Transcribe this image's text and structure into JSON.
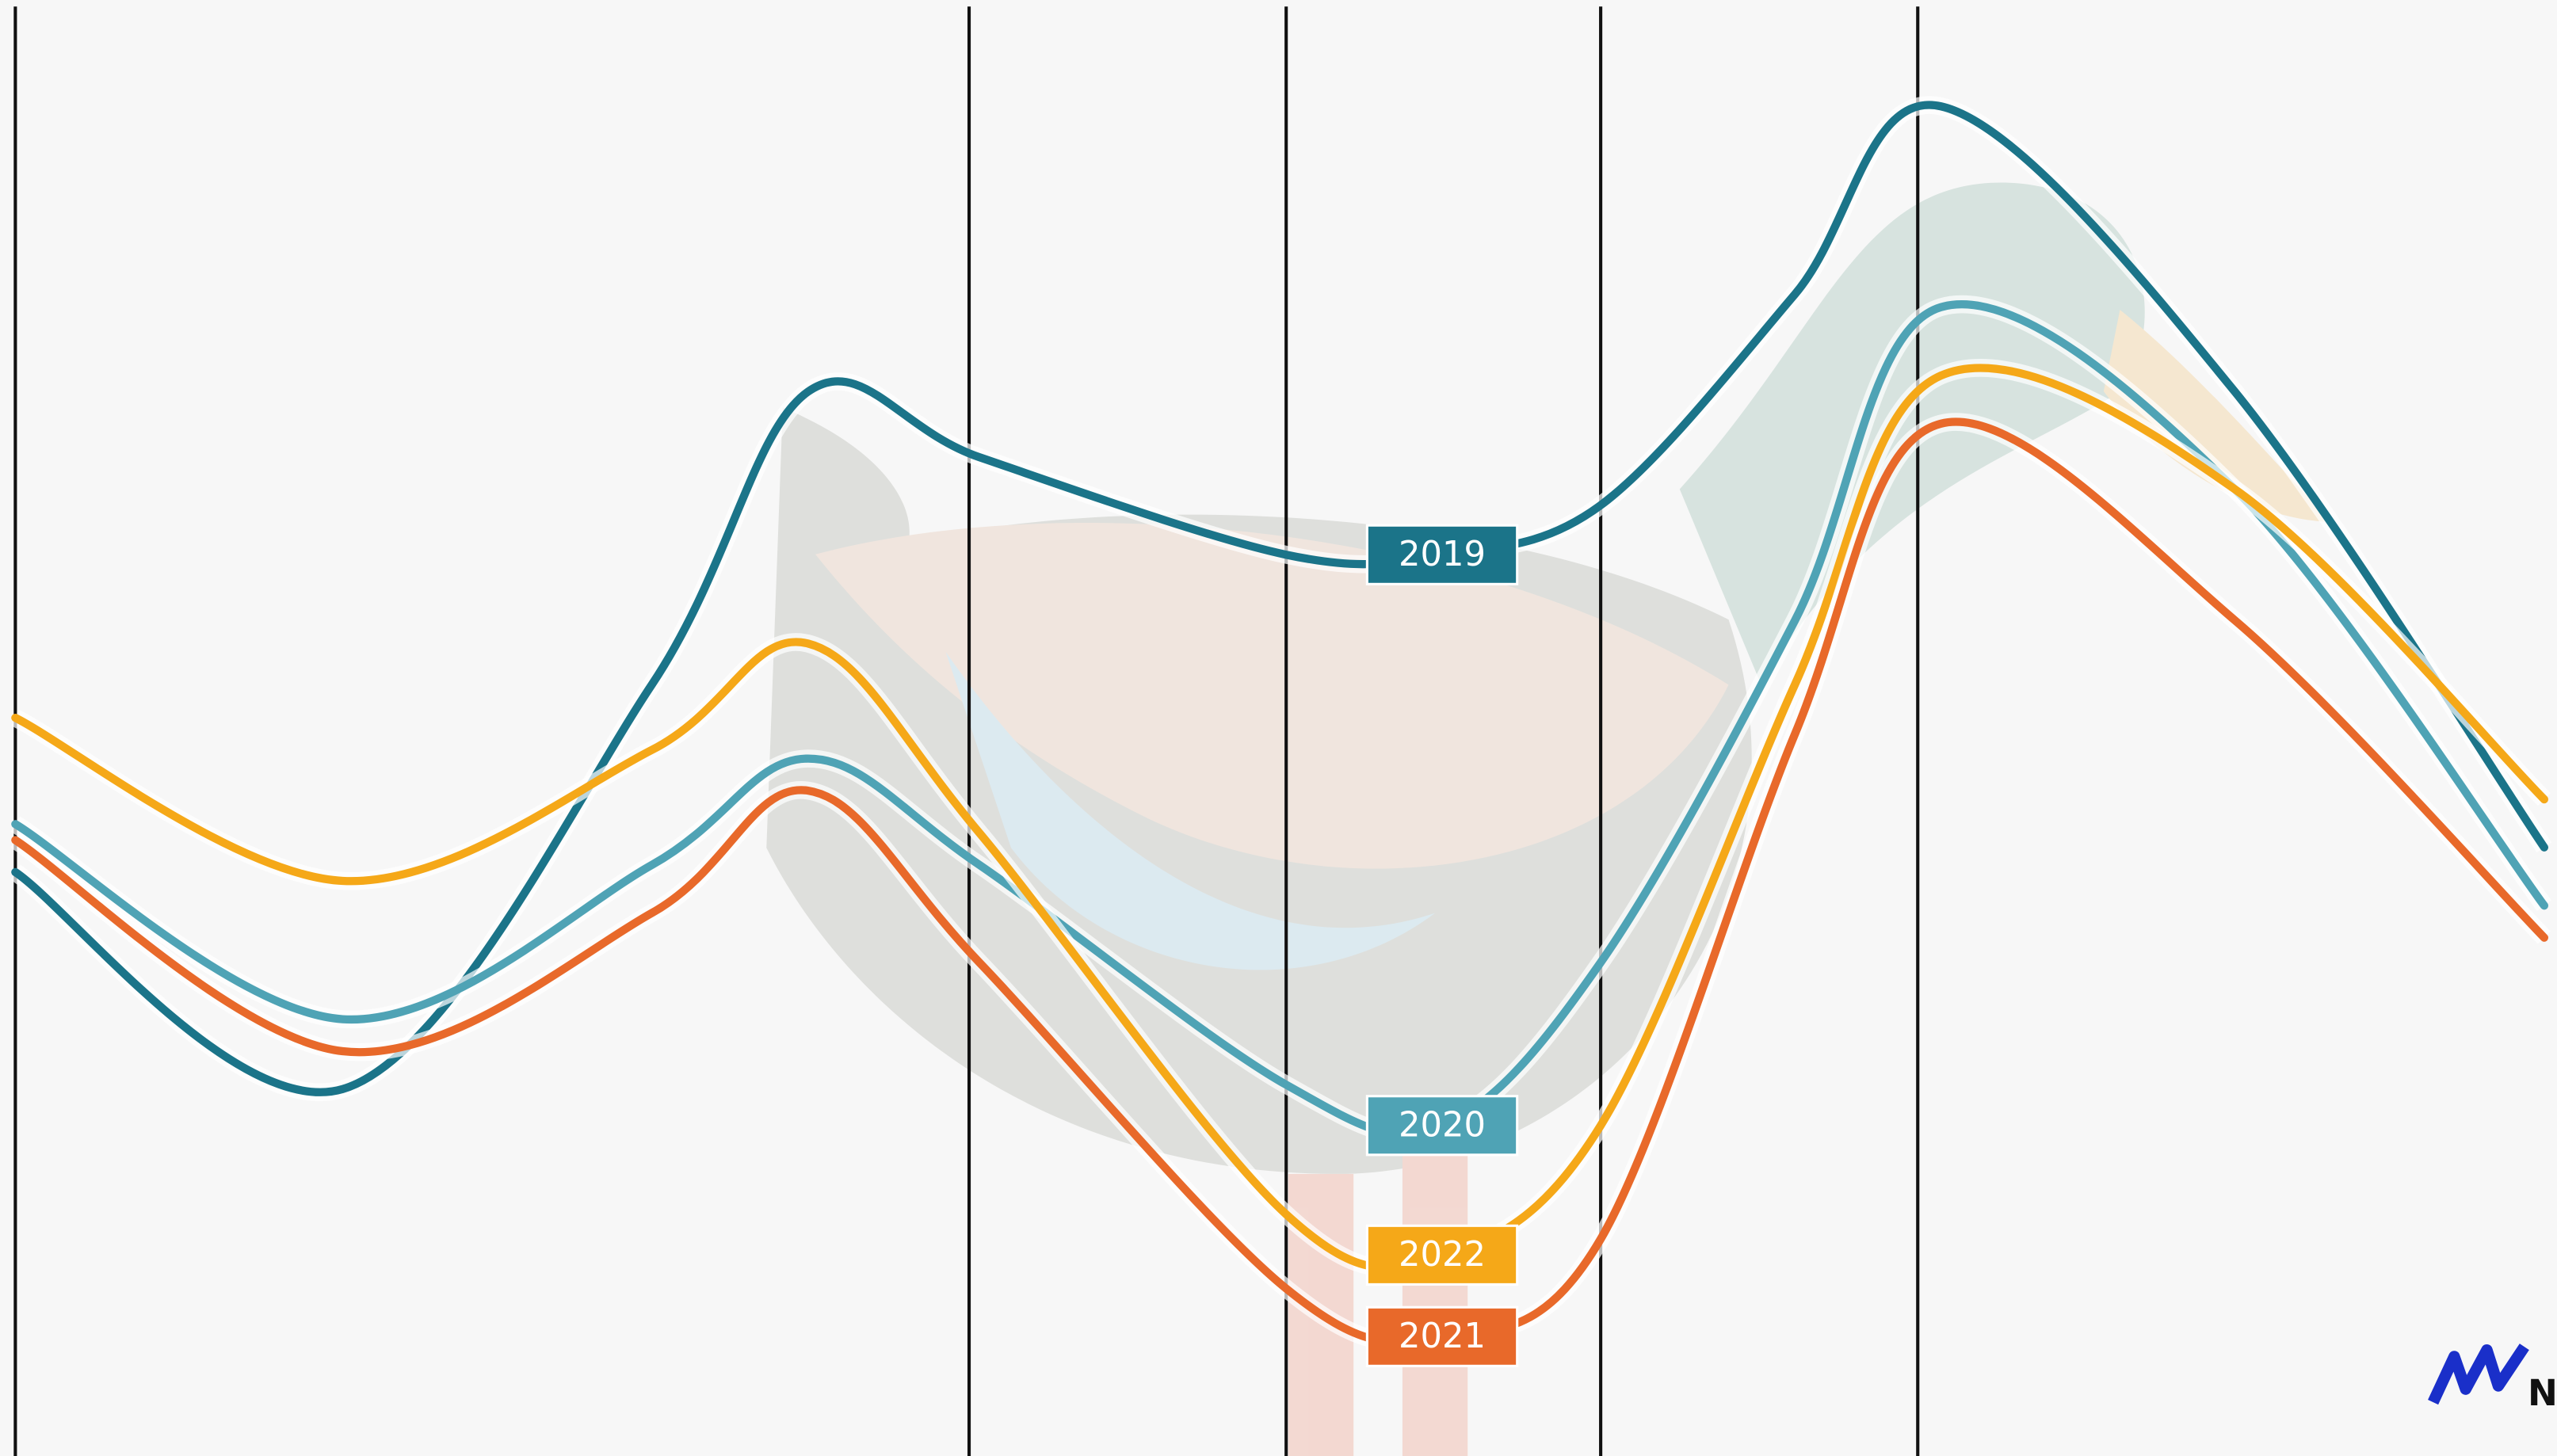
{
  "chart_data": {
    "type": "line",
    "x": [
      0.6,
      13.4,
      25.5,
      31.6,
      38.3,
      50.3,
      56.4,
      62.6,
      70.2,
      75.9,
      87.4,
      99.5
    ],
    "xlim": [
      0,
      100
    ],
    "xticks": [
      0.6,
      37.9,
      50.3,
      62.6,
      75.0
    ],
    "ylim": [
      0,
      100
    ],
    "label_index": 6,
    "series": [
      {
        "name": "2019",
        "color": "#1b7489",
        "values": [
          40.1,
          25.2,
          53.0,
          73.1,
          68.6,
          61.9,
          61.9,
          65.3,
          79.8,
          92.7,
          73.1,
          41.8
        ]
      },
      {
        "name": "2020",
        "color": "#4fa3b5",
        "values": [
          43.4,
          30.0,
          40.6,
          47.9,
          40.6,
          25.5,
          22.7,
          33.9,
          57.4,
          78.9,
          66.4,
          37.8
        ]
      },
      {
        "name": "2022",
        "color": "#f5a818",
        "values": [
          50.7,
          39.5,
          48.5,
          55.8,
          42.8,
          16.6,
          13.8,
          22.7,
          53.0,
          74.2,
          66.4,
          45.1
        ]
      },
      {
        "name": "2021",
        "color": "#e8692a",
        "values": [
          42.3,
          27.8,
          37.3,
          45.7,
          33.9,
          11.5,
          8.2,
          14.9,
          49.6,
          70.9,
          57.4,
          35.6
        ]
      }
    ]
  },
  "logo": "N"
}
